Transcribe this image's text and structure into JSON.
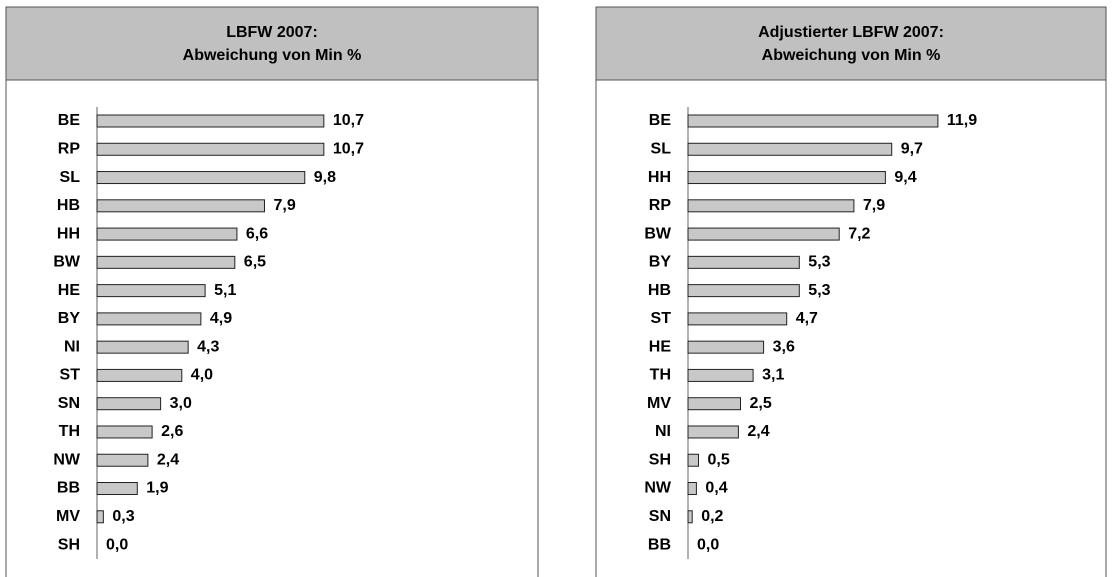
{
  "chart_data": [
    {
      "type": "bar",
      "orientation": "horizontal",
      "title": "LBFW 2007:",
      "subtitle": "Abweichung von Min %",
      "color": "#c8c8c8",
      "categories": [
        "BE",
        "RP",
        "SL",
        "HB",
        "HH",
        "BW",
        "HE",
        "BY",
        "NI",
        "ST",
        "SN",
        "TH",
        "NW",
        "BB",
        "MV",
        "SH"
      ],
      "values": [
        10.7,
        10.7,
        9.8,
        7.9,
        6.6,
        6.5,
        5.1,
        4.9,
        4.3,
        4.0,
        3.0,
        2.6,
        2.4,
        1.9,
        0.3,
        0.0
      ],
      "value_labels": [
        "10,7",
        "10,7",
        "9,8",
        "7,9",
        "6,6",
        "6,5",
        "5,1",
        "4,9",
        "4,3",
        "4,0",
        "3,0",
        "2,6",
        "2,4",
        "1,9",
        "0,3",
        "0,0"
      ]
    },
    {
      "type": "bar",
      "orientation": "horizontal",
      "title": "Adjustierter LBFW 2007:",
      "subtitle": "Abweichung von Min %",
      "color": "#c8c8c8",
      "categories": [
        "BE",
        "SL",
        "HH",
        "RP",
        "BW",
        "BY",
        "HB",
        "ST",
        "HE",
        "TH",
        "MV",
        "NI",
        "SH",
        "NW",
        "SN",
        "BB"
      ],
      "values": [
        11.9,
        9.7,
        9.4,
        7.9,
        7.2,
        5.3,
        5.3,
        4.7,
        3.6,
        3.1,
        2.5,
        2.4,
        0.5,
        0.4,
        0.2,
        0.0
      ],
      "value_labels": [
        "11,9",
        "9,7",
        "9,4",
        "7,9",
        "7,2",
        "5,3",
        "5,3",
        "4,7",
        "3,6",
        "3,1",
        "2,5",
        "2,4",
        "0,5",
        "0,4",
        "0,2",
        "0,0"
      ]
    }
  ]
}
